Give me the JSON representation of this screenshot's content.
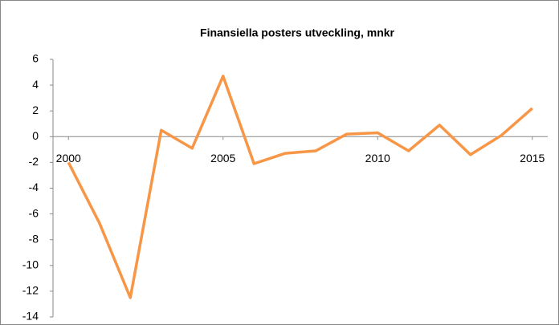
{
  "chart_data": {
    "type": "line",
    "title": "Finansiella posters utveckling, mnkr",
    "x": [
      2000,
      2001,
      2002,
      2003,
      2004,
      2005,
      2006,
      2007,
      2008,
      2009,
      2010,
      2011,
      2012,
      2013,
      2014,
      2015
    ],
    "series": [
      {
        "name": "Finansiella poster",
        "color": "#f79646",
        "values": [
          -2,
          -6.7,
          -12.5,
          0.5,
          -0.9,
          4.7,
          -2.1,
          -1.3,
          -1.1,
          0.2,
          0.3,
          -1.1,
          0.9,
          -1.4,
          0.1,
          2.2
        ]
      }
    ],
    "xlim": [
      1999.5,
      2015.5
    ],
    "xticks": [
      2000,
      2005,
      2010,
      2015
    ],
    "ylim": [
      -14,
      6
    ],
    "yticks": [
      -14,
      -12,
      -10,
      -8,
      -6,
      -4,
      -2,
      0,
      2,
      4,
      6
    ]
  }
}
